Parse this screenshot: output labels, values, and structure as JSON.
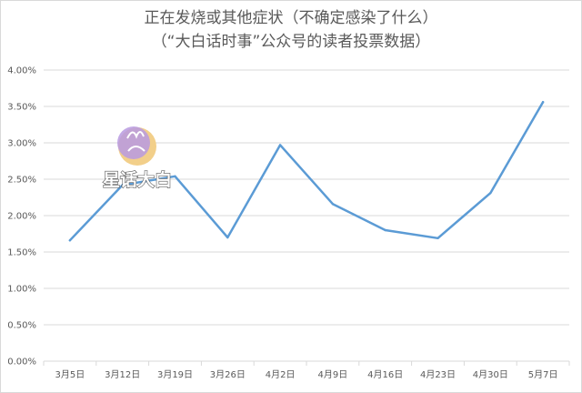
{
  "chart_data": {
    "type": "line",
    "title": "正在发烧或其他症状（不确定感染了什么）",
    "subtitle": "（“大白话时事”公众号的读者投票数据）",
    "categories": [
      "3月5日",
      "3月12日",
      "3月19日",
      "3月26日",
      "4月2日",
      "4月9日",
      "4月16日",
      "4月23日",
      "4月30日",
      "5月7日"
    ],
    "series": [
      {
        "values": [
          1.66,
          2.42,
          2.54,
          1.7,
          2.97,
          2.16,
          1.8,
          1.69,
          2.31,
          3.56
        ],
        "color": "#5b9bd5"
      }
    ],
    "yticks": [
      "0.00%",
      "0.50%",
      "1.00%",
      "1.50%",
      "2.00%",
      "2.50%",
      "3.00%",
      "3.50%",
      "4.00%"
    ],
    "ylim": [
      0,
      4
    ],
    "grid": true,
    "watermark": "星话大白"
  }
}
